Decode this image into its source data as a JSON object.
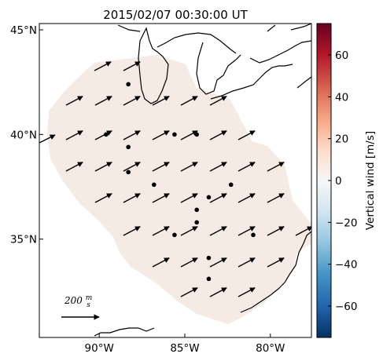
{
  "title": "2015/02/07 00:30:00 UT",
  "map": {
    "lat_ticks": [
      {
        "value": 45,
        "label": "45°N"
      },
      {
        "value": 40,
        "label": "40°N"
      },
      {
        "value": 35,
        "label": "35°N"
      }
    ],
    "lon_ticks": [
      {
        "value": -90,
        "label": "90°W"
      },
      {
        "value": -85,
        "label": "85°W"
      },
      {
        "value": -80,
        "label": "80°W"
      }
    ],
    "lon_range": [
      -93.5,
      -77.6
    ],
    "lat_range": [
      30.3,
      45.3
    ],
    "stations": [
      [
        -88.3,
        42.4
      ],
      [
        -89.6,
        40.0
      ],
      [
        -85.6,
        40.0
      ],
      [
        -84.3,
        40.0
      ],
      [
        -88.3,
        39.4
      ],
      [
        -88.3,
        38.2
      ],
      [
        -86.8,
        37.6
      ],
      [
        -82.3,
        37.6
      ],
      [
        -83.6,
        37.0
      ],
      [
        -84.3,
        36.4
      ],
      [
        -84.3,
        35.8
      ],
      [
        -85.6,
        35.2
      ],
      [
        -81.0,
        35.2
      ],
      [
        -83.6,
        34.1
      ],
      [
        -83.6,
        33.1
      ]
    ],
    "wind_field_color": "#f6ebe4",
    "arrow_angle_deg": 28
  },
  "reference_vector": {
    "label": "200 m/s",
    "num": "m",
    "den": "s",
    "value_text": "200 "
  },
  "colorbar": {
    "label": "Vertical wind [m/s]",
    "range": [
      -75,
      75
    ],
    "ticks": [
      {
        "value": 60,
        "label": "60"
      },
      {
        "value": 40,
        "label": "40"
      },
      {
        "value": 20,
        "label": "20"
      },
      {
        "value": 0,
        "label": "0"
      },
      {
        "value": -20,
        "label": "−20"
      },
      {
        "value": -40,
        "label": "−40"
      },
      {
        "value": -60,
        "label": "−60"
      }
    ],
    "colormap": [
      "#053061",
      "#2166ac",
      "#4393c3",
      "#92c5de",
      "#d1e5f0",
      "#f7f7f7",
      "#fddbc7",
      "#f4a582",
      "#d6604d",
      "#b2182b",
      "#67001f"
    ]
  }
}
